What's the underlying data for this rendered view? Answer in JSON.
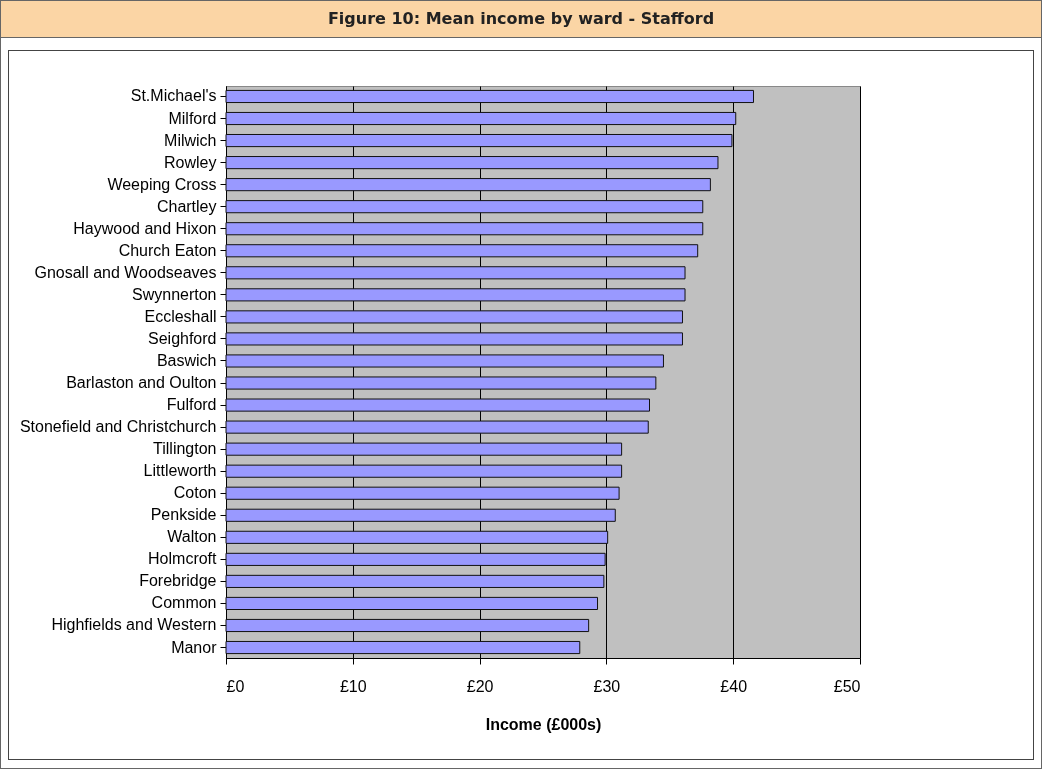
{
  "chart_data": {
    "type": "bar",
    "orientation": "horizontal",
    "title": "Figure 10: Mean income by ward - Stafford",
    "xlabel": "Income (£000s)",
    "categories": [
      "St.Michael's",
      "Milford",
      "Milwich",
      "Rowley",
      "Weeping Cross",
      "Chartley",
      "Haywood and Hixon",
      "Church Eaton",
      "Gnosall and Woodseaves",
      "Swynnerton",
      "Eccleshall",
      "Seighford",
      "Baswich",
      "Barlaston and Oulton",
      "Fulford",
      "Stonefield and Christchurch",
      "Tillington",
      "Littleworth",
      "Coton",
      "Penkside",
      "Walton",
      "Holmcroft",
      "Forebridge",
      "Common",
      "Highfields and Western",
      "Manor"
    ],
    "values": [
      41.6,
      40.2,
      39.9,
      38.8,
      38.2,
      37.6,
      37.6,
      37.2,
      36.2,
      36.2,
      36.0,
      36.0,
      34.5,
      33.9,
      33.4,
      33.3,
      31.2,
      31.2,
      31.0,
      30.7,
      30.1,
      29.9,
      29.8,
      29.3,
      28.6,
      27.9
    ],
    "color": "#9999ff",
    "xlim": [
      0,
      50
    ],
    "xticks": [
      {
        "value": 0,
        "label": "£0"
      },
      {
        "value": 10,
        "label": "£10"
      },
      {
        "value": 20,
        "label": "£20"
      },
      {
        "value": 30,
        "label": "£30"
      },
      {
        "value": 40,
        "label": "£40"
      },
      {
        "value": 50,
        "label": "£50"
      }
    ],
    "grid": "x"
  }
}
